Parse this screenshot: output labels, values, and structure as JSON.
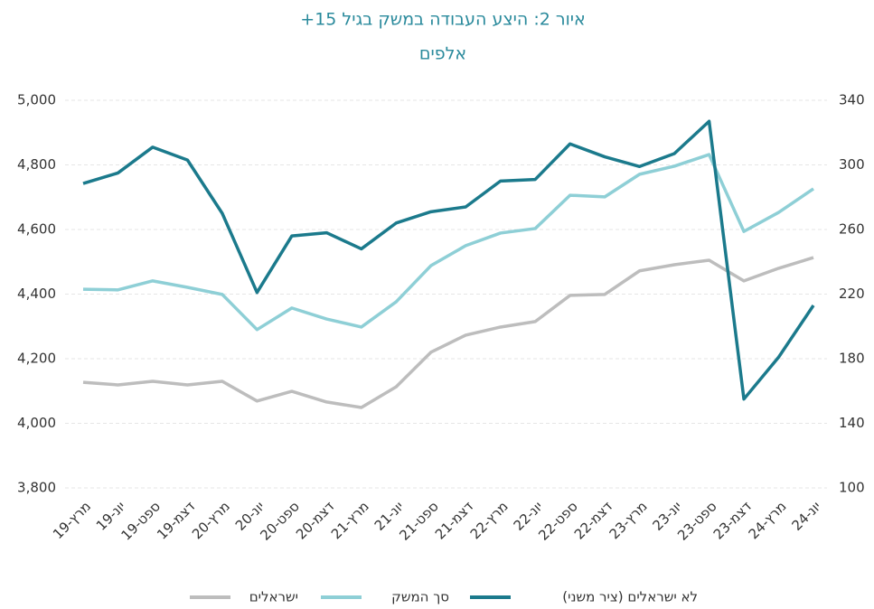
{
  "chart_data": {
    "type": "line",
    "title": "איור 2: היצע העבודה במשק בגיל 15+",
    "subtitle": "אלפים",
    "categories": [
      "מרץ-19",
      "יונ-19",
      "ספט-19",
      "דצמ-19",
      "מרץ-20",
      "יונ-20",
      "ספט-20",
      "דצמ-20",
      "מרץ-21",
      "יונ-21",
      "ספט-21",
      "דצמ-21",
      "מרץ-22",
      "יונ-22",
      "ספט-22",
      "דצמ-22",
      "מרץ-23",
      "יונ-23",
      "ספט-23",
      "דצמ-23",
      "מרץ-24",
      "יונ-24"
    ],
    "series": [
      {
        "name": "ישראלים",
        "color": "#bdbdbd",
        "values": [
          4127,
          4119,
          4130,
          4119,
          4130,
          4069,
          4099,
          4066,
          4049,
          4113,
          4220,
          4273,
          4298,
          4315,
          4396,
          4399,
          4472,
          4491,
          4505,
          4441,
          4480,
          4513
        ]
      },
      {
        "name": "סך המשק",
        "color": "#8ecfd6",
        "values": [
          4415,
          4413,
          4441,
          4421,
          4399,
          4290,
          4357,
          4323,
          4298,
          4376,
          4488,
          4550,
          4589,
          4603,
          4706,
          4701,
          4771,
          4796,
          4832,
          4594,
          4653,
          4726
        ]
      },
      {
        "name": "לא ישראלים (ציר משני)",
        "color": "#1b7a8c",
        "axis": "y2",
        "values": [
          288.5,
          295,
          311,
          303,
          270,
          221,
          256,
          258,
          248,
          264,
          271,
          274,
          290,
          291,
          313,
          305,
          299,
          307,
          327,
          155,
          181,
          213
        ]
      }
    ],
    "ylim": [
      3800,
      5000
    ],
    "yticks": [
      {
        "value": 3800,
        "label": "3,800"
      },
      {
        "value": 4000,
        "label": "4,000"
      },
      {
        "value": 4200,
        "label": "4,200"
      },
      {
        "value": 4400,
        "label": "4,400"
      },
      {
        "value": 4600,
        "label": "4,600"
      },
      {
        "value": 4800,
        "label": "4,800"
      },
      {
        "value": 5000,
        "label": "5,000"
      }
    ],
    "y2lim": [
      100,
      340
    ],
    "y2ticks": [
      100,
      140,
      180,
      220,
      260,
      300,
      340
    ],
    "grid": true,
    "legend": "bottom"
  }
}
